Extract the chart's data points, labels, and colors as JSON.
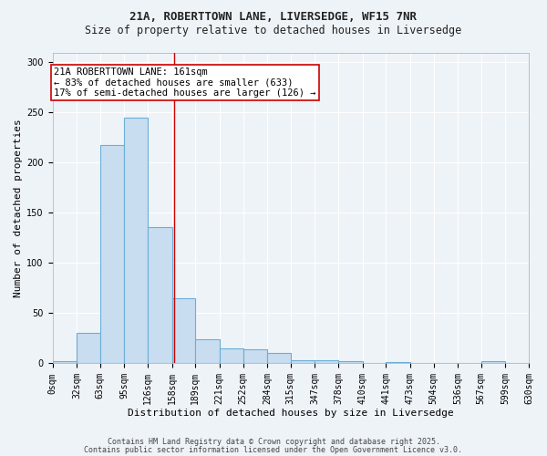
{
  "title_line1": "21A, ROBERTTOWN LANE, LIVERSEDGE, WF15 7NR",
  "title_line2": "Size of property relative to detached houses in Liversedge",
  "xlabel": "Distribution of detached houses by size in Liversedge",
  "ylabel": "Number of detached properties",
  "bar_color": "#c9ddf0",
  "bar_edge_color": "#6baed6",
  "vline_color": "#cc0000",
  "vline_x": 161,
  "bins": [
    0,
    32,
    63,
    95,
    126,
    158,
    189,
    221,
    252,
    284,
    315,
    347,
    378,
    410,
    441,
    473,
    504,
    536,
    567,
    599,
    630
  ],
  "bin_labels": [
    "0sqm",
    "32sqm",
    "63sqm",
    "95sqm",
    "126sqm",
    "158sqm",
    "189sqm",
    "221sqm",
    "252sqm",
    "284sqm",
    "315sqm",
    "347sqm",
    "378sqm",
    "410sqm",
    "441sqm",
    "473sqm",
    "504sqm",
    "536sqm",
    "567sqm",
    "599sqm",
    "630sqm"
  ],
  "counts": [
    2,
    30,
    218,
    245,
    136,
    65,
    24,
    15,
    14,
    10,
    3,
    3,
    2,
    0,
    1,
    0,
    0,
    0,
    2,
    0
  ],
  "ylim": [
    0,
    310
  ],
  "yticks": [
    0,
    50,
    100,
    150,
    200,
    250,
    300
  ],
  "annotation_text": "21A ROBERTTOWN LANE: 161sqm\n← 83% of detached houses are smaller (633)\n17% of semi-detached houses are larger (126) →",
  "footer_line1": "Contains HM Land Registry data © Crown copyright and database right 2025.",
  "footer_line2": "Contains public sector information licensed under the Open Government Licence v3.0.",
  "bg_color": "#eef3f8",
  "plot_bg_color": "#eef3f8",
  "grid_color": "#ffffff",
  "title_fontsize": 9,
  "subtitle_fontsize": 8.5,
  "tick_fontsize": 7,
  "axis_label_fontsize": 8,
  "footer_fontsize": 6,
  "annotation_fontsize": 7.5
}
